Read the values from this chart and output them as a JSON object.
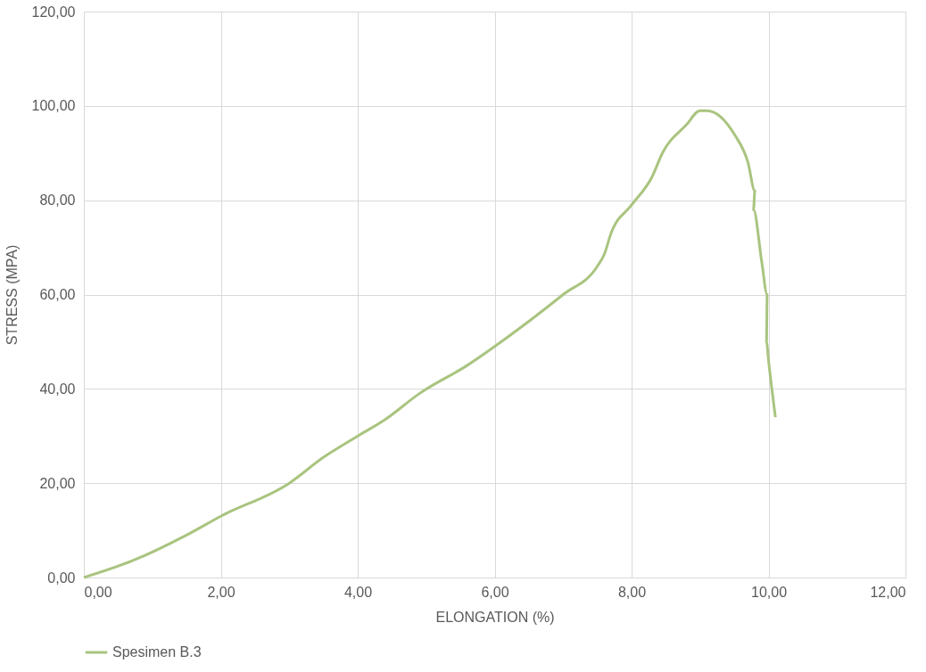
{
  "chart_data": {
    "type": "line",
    "xlabel": "ELONGATION (%)",
    "ylabel": "STRESS (MPA)",
    "xlim": [
      0,
      12
    ],
    "ylim": [
      0,
      120
    ],
    "xticks": [
      {
        "value": 0,
        "label": "0,00"
      },
      {
        "value": 2,
        "label": "2,00"
      },
      {
        "value": 4,
        "label": "4,00"
      },
      {
        "value": 6,
        "label": "6,00"
      },
      {
        "value": 8,
        "label": "8,00"
      },
      {
        "value": 10,
        "label": "10,00"
      },
      {
        "value": 12,
        "label": "12,00"
      }
    ],
    "yticks": [
      {
        "value": 0,
        "label": "0,00"
      },
      {
        "value": 20,
        "label": "20,00"
      },
      {
        "value": 40,
        "label": "40,00"
      },
      {
        "value": 60,
        "label": "60,00"
      },
      {
        "value": 80,
        "label": "80,00"
      },
      {
        "value": 100,
        "label": "100,00"
      },
      {
        "value": 120,
        "label": "120,00"
      }
    ],
    "grid": true,
    "legend": "bottom",
    "marker": "none",
    "line_style": "solid",
    "series": [
      {
        "name": "Spesimen B.3",
        "color": "#a9c47f",
        "x": [
          0,
          0.7,
          1.5,
          2.0,
          3.0,
          3.5,
          4.0,
          4.4,
          4.9,
          5.6,
          6.0,
          7.0,
          7.5,
          7.6,
          7.7,
          8.0,
          8.3,
          8.45,
          8.8,
          9.0,
          9.1,
          9.5,
          9.7,
          9.8,
          9.78,
          9.9,
          9.98,
          9.97,
          10.0,
          10.1
        ],
        "values": [
          0,
          3.5,
          9,
          13,
          20,
          25.5,
          30,
          33.5,
          39,
          45,
          49,
          60,
          66,
          68.5,
          73,
          79,
          85,
          90,
          96,
          99,
          99,
          94,
          88,
          82,
          78,
          67,
          60,
          50,
          46,
          34
        ]
      }
    ]
  }
}
